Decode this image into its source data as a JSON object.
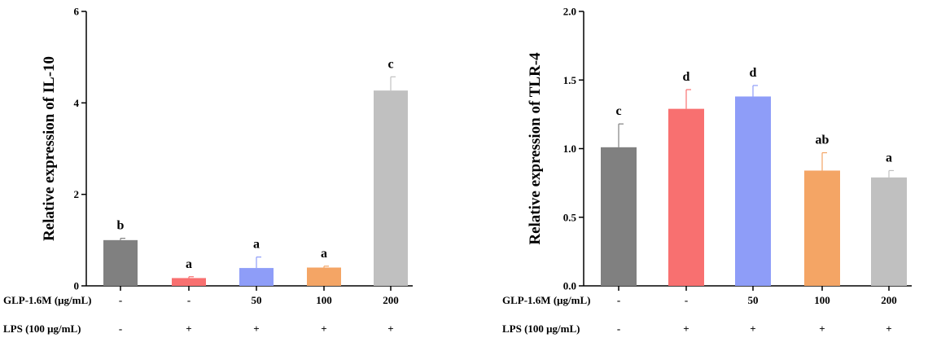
{
  "chart_data": [
    {
      "type": "bar",
      "ylabel": "Relative expression of IL-10",
      "ylim": [
        0,
        6
      ],
      "yticks": [
        0,
        2,
        4,
        6
      ],
      "ytick_labels": [
        "0",
        "2",
        "4",
        "6"
      ],
      "grid": false,
      "bars": [
        {
          "value": 1.0,
          "error": 0.04,
          "color": "#808080",
          "sig": "b"
        },
        {
          "value": 0.17,
          "error": 0.03,
          "color": "#F87070",
          "sig": "a"
        },
        {
          "value": 0.39,
          "error": 0.24,
          "color": "#8E9DF8",
          "sig": "a"
        },
        {
          "value": 0.4,
          "error": 0.03,
          "color": "#F4A565",
          "sig": "a"
        },
        {
          "value": 4.27,
          "error": 0.3,
          "color": "#C0C0C0",
          "sig": "c"
        }
      ],
      "rows": [
        {
          "label": "GLP-1.6M (μg/mL)",
          "values": [
            "-",
            "-",
            "50",
            "100",
            "200"
          ]
        },
        {
          "label": "LPS (100 μg/mL)",
          "values": [
            "-",
            "+",
            "+",
            "+",
            "+"
          ]
        }
      ]
    },
    {
      "type": "bar",
      "ylabel": "Relative expression of TLR-4",
      "ylim": [
        0,
        2.0
      ],
      "yticks": [
        0,
        0.5,
        1.0,
        1.5,
        2.0
      ],
      "ytick_labels": [
        "0.0",
        "0.5",
        "1.0",
        "1.5",
        "2.0"
      ],
      "grid": false,
      "bars": [
        {
          "value": 1.01,
          "error": 0.17,
          "color": "#808080",
          "sig": "c"
        },
        {
          "value": 1.29,
          "error": 0.14,
          "color": "#F87070",
          "sig": "d"
        },
        {
          "value": 1.38,
          "error": 0.08,
          "color": "#8E9DF8",
          "sig": "d"
        },
        {
          "value": 0.84,
          "error": 0.13,
          "color": "#F4A565",
          "sig": "ab"
        },
        {
          "value": 0.79,
          "error": 0.05,
          "color": "#C0C0C0",
          "sig": "a"
        }
      ],
      "rows": [
        {
          "label": "GLP-1.6M (μg/mL)",
          "values": [
            "-",
            "-",
            "50",
            "100",
            "200"
          ]
        },
        {
          "label": "LPS (100 μg/mL)",
          "values": [
            "-",
            "+",
            "+",
            "+",
            "+"
          ]
        }
      ]
    }
  ]
}
